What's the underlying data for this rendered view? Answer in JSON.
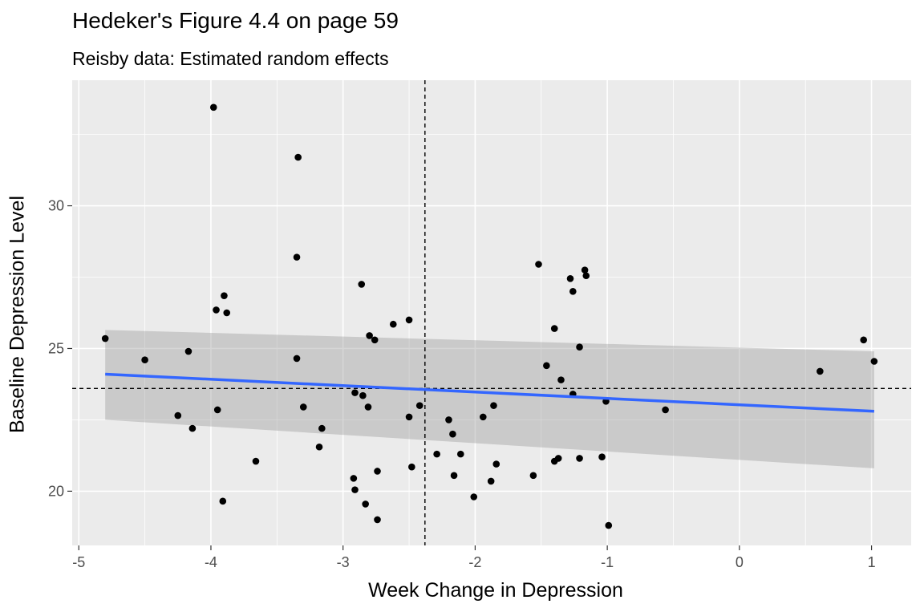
{
  "chart_data": {
    "type": "scatter",
    "title": "Hedeker's Figure 4.4 on page 59",
    "subtitle": "Reisby data: Estimated random effects",
    "xlabel": "Week Change in Depression",
    "ylabel": "Baseline Depression Level",
    "xlim": [
      -5.05,
      1.3
    ],
    "ylim": [
      18.1,
      34.4
    ],
    "x_ticks": [
      -5,
      -4,
      -3,
      -2,
      -1,
      0,
      1
    ],
    "x_tick_labels": [
      "-5",
      "-4",
      "-3",
      "-2",
      "-1",
      "0",
      "1"
    ],
    "y_ticks": [
      20,
      25,
      30
    ],
    "y_tick_labels": [
      "20",
      "25",
      "30"
    ],
    "grid": true,
    "vline": -2.38,
    "hline": 23.6,
    "smooth": {
      "method": "lm",
      "x": [
        -4.8,
        1.02
      ],
      "y": [
        24.1,
        22.8
      ],
      "ci_lower": [
        22.5,
        20.8
      ],
      "ci_upper": [
        25.65,
        24.9
      ]
    },
    "colors": {
      "points": "#000000",
      "line": "#3366FF",
      "ribbon": "#999999",
      "panel": "#EBEBEB",
      "grid": "#FFFFFF"
    },
    "points": [
      [
        -4.8,
        25.35
      ],
      [
        -4.5,
        24.6
      ],
      [
        -4.25,
        22.65
      ],
      [
        -4.17,
        24.9
      ],
      [
        -4.14,
        22.2
      ],
      [
        -3.98,
        33.45
      ],
      [
        -3.96,
        26.35
      ],
      [
        -3.95,
        22.85
      ],
      [
        -3.9,
        26.85
      ],
      [
        -3.88,
        26.25
      ],
      [
        -3.91,
        19.65
      ],
      [
        -3.66,
        21.05
      ],
      [
        -3.34,
        31.7
      ],
      [
        -3.35,
        28.2
      ],
      [
        -3.35,
        24.65
      ],
      [
        -3.3,
        22.95
      ],
      [
        -3.18,
        21.55
      ],
      [
        -3.16,
        22.2
      ],
      [
        -2.92,
        20.45
      ],
      [
        -2.91,
        20.05
      ],
      [
        -2.91,
        23.45
      ],
      [
        -2.86,
        27.25
      ],
      [
        -2.85,
        23.35
      ],
      [
        -2.83,
        19.55
      ],
      [
        -2.81,
        22.95
      ],
      [
        -2.8,
        25.45
      ],
      [
        -2.76,
        25.3
      ],
      [
        -2.74,
        20.7
      ],
      [
        -2.74,
        19.0
      ],
      [
        -2.62,
        25.85
      ],
      [
        -2.5,
        26.0
      ],
      [
        -2.5,
        22.6
      ],
      [
        -2.48,
        20.85
      ],
      [
        -2.42,
        23.0
      ],
      [
        -2.29,
        21.3
      ],
      [
        -2.2,
        22.5
      ],
      [
        -2.17,
        22.0
      ],
      [
        -2.16,
        20.55
      ],
      [
        -2.11,
        21.3
      ],
      [
        -2.01,
        19.8
      ],
      [
        -1.94,
        22.6
      ],
      [
        -1.88,
        20.35
      ],
      [
        -1.86,
        23.0
      ],
      [
        -1.84,
        20.95
      ],
      [
        -1.56,
        20.55
      ],
      [
        -1.52,
        27.95
      ],
      [
        -1.46,
        24.4
      ],
      [
        -1.4,
        25.7
      ],
      [
        -1.4,
        21.05
      ],
      [
        -1.37,
        21.15
      ],
      [
        -1.35,
        23.9
      ],
      [
        -1.28,
        27.45
      ],
      [
        -1.26,
        27.0
      ],
      [
        -1.26,
        23.4
      ],
      [
        -1.21,
        25.05
      ],
      [
        -1.21,
        21.15
      ],
      [
        -1.17,
        27.75
      ],
      [
        -1.16,
        27.55
      ],
      [
        -1.04,
        21.2
      ],
      [
        -1.01,
        23.15
      ],
      [
        -0.99,
        18.8
      ],
      [
        -0.56,
        22.85
      ],
      [
        0.61,
        24.2
      ],
      [
        0.94,
        25.3
      ],
      [
        1.02,
        24.55
      ]
    ]
  }
}
